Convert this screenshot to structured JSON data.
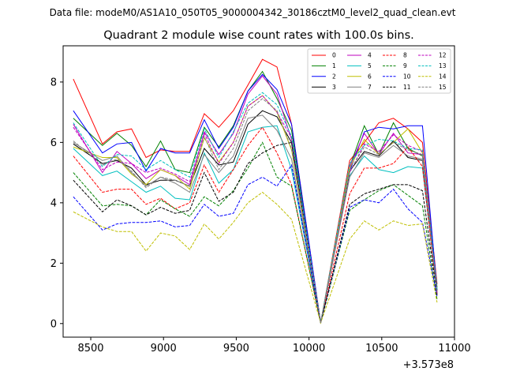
{
  "header": {
    "file_line": "Data file: modeM0/AS1A10_050T05_9000004342_30186cztM0_level2_quad_clean.evt",
    "title": "Quadrant 2 module wise count rates with 100.0s bins."
  },
  "chart_data": {
    "type": "line",
    "title": "Quadrant 2 module wise count rates with 100.0s bins.",
    "x_offset_label": "+3.573e8",
    "xlim": [
      8310,
      11000
    ],
    "ylim": [
      -0.45,
      9.2
    ],
    "xticks": [
      8500,
      9000,
      9500,
      10000,
      10500,
      11000
    ],
    "xtick_labels": [
      "8500",
      "9000",
      "9500",
      "10000",
      "10500",
      "11000"
    ],
    "yticks": [
      0,
      2,
      4,
      6,
      8
    ],
    "ytick_labels": [
      "0",
      "2",
      "4",
      "6",
      "8"
    ],
    "legend_position": "top-right",
    "x": [
      8380,
      8480,
      8580,
      8680,
      8780,
      8880,
      8980,
      9080,
      9180,
      9280,
      9380,
      9480,
      9580,
      9680,
      9780,
      9880,
      9980,
      10080,
      10180,
      10280,
      10380,
      10480,
      10580,
      10680,
      10780,
      10880
    ],
    "series": [
      {
        "name": "0",
        "color": "#ff0000",
        "dash": "solid",
        "values": [
          8.1,
          null,
          5.95,
          6.35,
          6.45,
          5.5,
          5.75,
          5.7,
          5.7,
          6.95,
          6.5,
          7.05,
          7.9,
          8.75,
          8.5,
          6.6,
          null,
          0.02,
          null,
          5.4,
          6.0,
          6.65,
          6.8,
          6.45,
          6.0,
          1.3
        ]
      },
      {
        "name": "1",
        "color": "#008000",
        "dash": "solid",
        "values": [
          6.8,
          null,
          5.9,
          6.3,
          5.9,
          5.2,
          6.05,
          5.1,
          5.0,
          6.5,
          5.85,
          6.55,
          7.7,
          8.35,
          7.45,
          6.4,
          null,
          0.02,
          null,
          5.2,
          6.55,
          5.6,
          6.65,
          5.8,
          5.55,
          1.2
        ]
      },
      {
        "name": "2",
        "color": "#0000ff",
        "dash": "solid",
        "values": [
          7.05,
          null,
          5.65,
          5.95,
          6.0,
          5.05,
          5.8,
          5.65,
          5.65,
          6.75,
          5.8,
          6.5,
          7.7,
          8.25,
          7.75,
          6.6,
          null,
          0.02,
          null,
          5.05,
          6.35,
          6.5,
          6.45,
          6.55,
          6.55,
          1.1
        ]
      },
      {
        "name": "3",
        "color": "#000000",
        "dash": "solid",
        "values": [
          5.95,
          null,
          5.3,
          5.4,
          5.15,
          4.6,
          4.75,
          4.75,
          4.55,
          5.8,
          5.25,
          5.35,
          6.6,
          7.05,
          6.85,
          6.0,
          null,
          0.02,
          null,
          5.05,
          5.7,
          5.55,
          6.05,
          5.5,
          5.4,
          1.1
        ]
      },
      {
        "name": "4",
        "color": "#bf00bf",
        "dash": "solid",
        "values": [
          6.6,
          null,
          5.0,
          5.7,
          5.3,
          4.8,
          5.1,
          4.9,
          4.6,
          6.35,
          5.6,
          6.3,
          7.6,
          8.2,
          7.6,
          6.1,
          null,
          0.02,
          null,
          5.2,
          6.3,
          5.6,
          6.3,
          5.65,
          5.6,
          1.05
        ]
      },
      {
        "name": "5",
        "color": "#00bfbf",
        "dash": "solid",
        "values": [
          5.8,
          null,
          4.9,
          5.05,
          4.7,
          4.35,
          4.55,
          4.15,
          4.1,
          5.65,
          4.65,
          5.1,
          6.35,
          6.5,
          6.55,
          5.1,
          null,
          0.02,
          null,
          4.9,
          5.55,
          5.1,
          5.0,
          5.2,
          5.15,
          1.0
        ]
      },
      {
        "name": "6",
        "color": "#bfbf00",
        "dash": "solid",
        "values": [
          5.85,
          null,
          5.5,
          5.5,
          4.95,
          4.6,
          5.1,
          4.9,
          4.45,
          6.15,
          5.35,
          6.0,
          7.2,
          7.55,
          7.0,
          5.75,
          null,
          0.02,
          null,
          5.15,
          6.1,
          5.6,
          6.0,
          6.45,
          5.65,
          1.0
        ]
      },
      {
        "name": "7",
        "color": "#808080",
        "dash": "solid",
        "values": [
          6.0,
          null,
          5.4,
          5.55,
          5.0,
          4.55,
          4.85,
          4.65,
          4.35,
          5.6,
          5.0,
          5.55,
          6.8,
          6.9,
          6.4,
          5.45,
          null,
          0.02,
          null,
          4.85,
          5.65,
          5.5,
          5.9,
          5.55,
          5.45,
          1.0
        ]
      },
      {
        "name": "8",
        "color": "#ff0000",
        "dash": "dashed",
        "values": [
          5.55,
          null,
          4.35,
          4.45,
          4.45,
          3.95,
          4.15,
          3.8,
          4.0,
          5.25,
          4.35,
          5.1,
          5.9,
          6.5,
          5.65,
          4.6,
          null,
          0.02,
          null,
          4.3,
          5.15,
          5.15,
          5.3,
          5.85,
          5.2,
          0.95
        ]
      },
      {
        "name": "9",
        "color": "#008000",
        "dash": "dashed",
        "values": [
          5.0,
          null,
          3.9,
          3.95,
          3.9,
          3.6,
          4.1,
          3.8,
          3.55,
          4.2,
          3.9,
          4.4,
          5.15,
          6.0,
          4.85,
          4.55,
          null,
          0.02,
          null,
          3.75,
          4.1,
          4.4,
          4.6,
          4.25,
          3.9,
          0.8
        ]
      },
      {
        "name": "10",
        "color": "#0000ff",
        "dash": "dashed",
        "values": [
          4.2,
          null,
          3.1,
          3.3,
          3.35,
          3.35,
          3.4,
          3.2,
          3.25,
          3.95,
          3.55,
          3.65,
          4.6,
          4.85,
          4.55,
          5.25,
          null,
          0.02,
          null,
          3.85,
          4.1,
          4.0,
          4.45,
          3.8,
          3.35,
          0.9
        ]
      },
      {
        "name": "11",
        "color": "#000000",
        "dash": "dashed",
        "values": [
          4.75,
          null,
          3.7,
          4.1,
          3.9,
          3.6,
          3.85,
          3.65,
          3.75,
          5.0,
          4.05,
          4.35,
          5.3,
          5.65,
          5.9,
          6.0,
          null,
          0.02,
          null,
          3.95,
          4.3,
          4.45,
          4.6,
          4.6,
          4.4,
          0.95
        ]
      },
      {
        "name": "12",
        "color": "#bf00bf",
        "dash": "dashed",
        "values": [
          6.5,
          null,
          5.1,
          5.35,
          5.3,
          5.0,
          5.15,
          4.95,
          4.7,
          6.3,
          5.3,
          6.0,
          7.2,
          7.55,
          7.0,
          6.15,
          null,
          0.02,
          null,
          5.0,
          5.95,
          5.7,
          6.25,
          5.9,
          5.7,
          1.0
        ]
      },
      {
        "name": "13",
        "color": "#00bfbf",
        "dash": "dashed",
        "values": [
          6.65,
          null,
          5.2,
          5.6,
          5.55,
          5.1,
          5.4,
          5.1,
          4.85,
          6.45,
          5.5,
          6.35,
          7.3,
          7.65,
          7.25,
          6.2,
          null,
          0.02,
          null,
          5.3,
          5.9,
          6.1,
          6.05,
          5.8,
          5.75,
          1.1
        ]
      },
      {
        "name": "14",
        "color": "#bfbf00",
        "dash": "dashed",
        "values": [
          3.7,
          null,
          3.2,
          3.05,
          3.05,
          2.4,
          3.0,
          2.9,
          2.45,
          3.3,
          2.8,
          3.35,
          4.0,
          4.35,
          3.95,
          3.45,
          null,
          0.02,
          null,
          2.8,
          3.4,
          3.1,
          3.4,
          3.25,
          3.3,
          0.7
        ]
      },
      {
        "name": "15",
        "color": "#808080",
        "dash": "dashed",
        "values": [
          6.05,
          null,
          5.25,
          5.45,
          5.05,
          4.5,
          4.85,
          4.75,
          4.55,
          6.2,
          5.1,
          5.8,
          7.05,
          7.45,
          7.05,
          5.8,
          null,
          0.02,
          null,
          5.05,
          5.85,
          5.6,
          6.0,
          5.75,
          5.6,
          1.0
        ]
      }
    ]
  }
}
